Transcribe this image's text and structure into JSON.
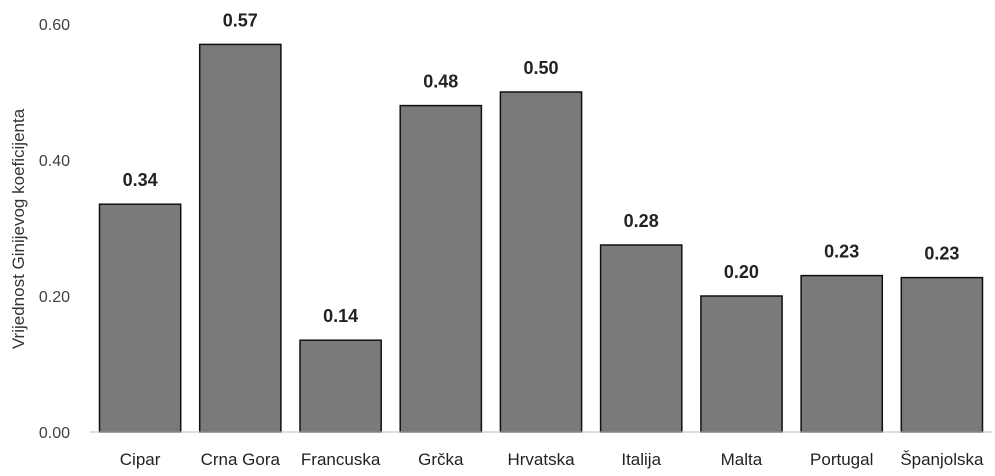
{
  "chart_data": {
    "type": "bar",
    "categories": [
      "Cipar",
      "Crna Gora",
      "Francuska",
      "Grčka",
      "Hrvatska",
      "Italija",
      "Malta",
      "Portugal",
      "Španjolska"
    ],
    "values": [
      0.335,
      0.57,
      0.135,
      0.48,
      0.5,
      0.275,
      0.2,
      0.23,
      0.227
    ],
    "data_labels": [
      "0.34",
      "0.57",
      "0.14",
      "0.48",
      "0.50",
      "0.28",
      "0.20",
      "0.23",
      "0.23"
    ],
    "ylabel": "Vrijednost Ginijevog koeficijenta",
    "ylim": [
      0,
      0.6
    ],
    "yticks": [
      0,
      0.2,
      0.4,
      0.6
    ],
    "ytick_labels": [
      "0.00",
      "0.20",
      "0.40",
      "0.60"
    ],
    "grid": false,
    "bar_color": "#7a7a7a",
    "bar_edge_color": "#111111"
  }
}
